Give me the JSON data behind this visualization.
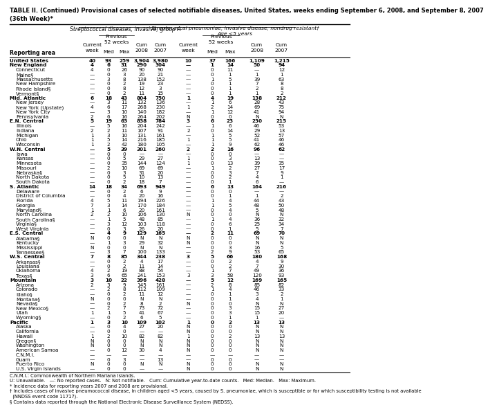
{
  "title": "TABLE II. (Continued) Provisional cases of selected notifiable diseases, United States, weeks ending September 6, 2008, and September 8, 2007\n(36th Week)*",
  "rows": [
    [
      "United States",
      "40",
      "93",
      "259",
      "3,904",
      "3,980",
      "10",
      "37",
      "166",
      "1,109",
      "1,215"
    ],
    [
      "New England",
      "4",
      "6",
      "31",
      "290",
      "304",
      "—",
      "1",
      "14",
      "50",
      "94"
    ],
    [
      "Connecticut",
      "4",
      "0",
      "26",
      "90",
      "90",
      "—",
      "0",
      "11",
      "—",
      "12"
    ],
    [
      "Maine§",
      "—",
      "0",
      "3",
      "20",
      "21",
      "—",
      "0",
      "1",
      "1",
      "1"
    ],
    [
      "Massachusetts",
      "—",
      "3",
      "8",
      "138",
      "152",
      "—",
      "1",
      "5",
      "39",
      "63"
    ],
    [
      "New Hampshire",
      "—",
      "0",
      "2",
      "19",
      "23",
      "—",
      "0",
      "1",
      "7",
      "8"
    ],
    [
      "Rhode Island§",
      "—",
      "0",
      "8",
      "12",
      "3",
      "—",
      "0",
      "1",
      "2",
      "8"
    ],
    [
      "Vermont§",
      "—",
      "0",
      "2",
      "11",
      "15",
      "—",
      "0",
      "1",
      "1",
      "2"
    ],
    [
      "Mid. Atlantic",
      "6",
      "18",
      "43",
      "804",
      "750",
      "1",
      "4",
      "19",
      "138",
      "212"
    ],
    [
      "New Jersey",
      "—",
      "3",
      "11",
      "132",
      "136",
      "—",
      "1",
      "6",
      "28",
      "43"
    ],
    [
      "New York (Upstate)",
      "4",
      "6",
      "17",
      "268",
      "230",
      "1",
      "2",
      "14",
      "69",
      "75"
    ],
    [
      "New York City",
      "—",
      "3",
      "10",
      "140",
      "182",
      "—",
      "1",
      "12",
      "41",
      "94"
    ],
    [
      "Pennsylvania",
      "2",
      "6",
      "16",
      "264",
      "202",
      "N",
      "0",
      "0",
      "N",
      "N"
    ],
    [
      "E.N. Central",
      "5",
      "19",
      "63",
      "838",
      "784",
      "3",
      "6",
      "23",
      "230",
      "215"
    ],
    [
      "Illinois",
      "—",
      "5",
      "16",
      "204",
      "242",
      "—",
      "1",
      "6",
      "46",
      "53"
    ],
    [
      "Indiana",
      "2",
      "2",
      "11",
      "107",
      "91",
      "2",
      "0",
      "14",
      "29",
      "13"
    ],
    [
      "Michigan",
      "1",
      "3",
      "10",
      "131",
      "161",
      "—",
      "1",
      "5",
      "52",
      "57"
    ],
    [
      "Ohio",
      "1",
      "5",
      "14",
      "216",
      "185",
      "1",
      "1",
      "5",
      "41",
      "46"
    ],
    [
      "Wisconsin",
      "1",
      "2",
      "42",
      "180",
      "105",
      "—",
      "1",
      "9",
      "62",
      "46"
    ],
    [
      "W.N. Central",
      "—",
      "5",
      "39",
      "301",
      "260",
      "2",
      "2",
      "16",
      "96",
      "62"
    ],
    [
      "Iowa",
      "—",
      "0",
      "0",
      "—",
      "—",
      "—",
      "0",
      "0",
      "—",
      "—"
    ],
    [
      "Kansas",
      "—",
      "0",
      "5",
      "29",
      "27",
      "1",
      "0",
      "3",
      "13",
      "—"
    ],
    [
      "Minnesota",
      "—",
      "0",
      "35",
      "144",
      "124",
      "1",
      "0",
      "13",
      "39",
      "35"
    ],
    [
      "Missouri",
      "—",
      "2",
      "10",
      "69",
      "69",
      "—",
      "1",
      "2",
      "27",
      "17"
    ],
    [
      "Nebraska§",
      "—",
      "0",
      "3",
      "31",
      "20",
      "—",
      "0",
      "3",
      "7",
      "9"
    ],
    [
      "North Dakota",
      "—",
      "0",
      "5",
      "10",
      "13",
      "—",
      "0",
      "2",
      "4",
      "1"
    ],
    [
      "South Dakota",
      "—",
      "0",
      "2",
      "18",
      "7",
      "—",
      "0",
      "1",
      "6",
      "—"
    ],
    [
      "S. Atlantic",
      "14",
      "18",
      "34",
      "693",
      "949",
      "—",
      "6",
      "13",
      "164",
      "216"
    ],
    [
      "Delaware",
      "—",
      "0",
      "2",
      "6",
      "9",
      "—",
      "0",
      "0",
      "—",
      "—"
    ],
    [
      "District of Columbia",
      "—",
      "0",
      "4",
      "20",
      "16",
      "—",
      "0",
      "1",
      "1",
      "2"
    ],
    [
      "Florida",
      "4",
      "5",
      "11",
      "194",
      "226",
      "—",
      "1",
      "4",
      "44",
      "43"
    ],
    [
      "Georgia",
      "7",
      "3",
      "14",
      "170",
      "184",
      "—",
      "1",
      "5",
      "48",
      "50"
    ],
    [
      "Maryland§",
      "1",
      "1",
      "6",
      "20",
      "161",
      "—",
      "0",
      "4",
      "5",
      "48"
    ],
    [
      "North Carolina",
      "2",
      "2",
      "10",
      "106",
      "130",
      "N",
      "0",
      "0",
      "N",
      "N"
    ],
    [
      "South Carolina§",
      "—",
      "1",
      "5",
      "48",
      "85",
      "—",
      "1",
      "4",
      "36",
      "32"
    ],
    [
      "Virginia§",
      "—",
      "3",
      "12",
      "103",
      "118",
      "—",
      "0",
      "6",
      "25",
      "34"
    ],
    [
      "West Virginia",
      "—",
      "0",
      "3",
      "26",
      "20",
      "—",
      "0",
      "1",
      "5",
      "7"
    ],
    [
      "E.S. Central",
      "—",
      "4",
      "9",
      "129",
      "165",
      "—",
      "2",
      "11",
      "69",
      "70"
    ],
    [
      "Alabama§",
      "N",
      "0",
      "0",
      "N",
      "N",
      "N",
      "0",
      "0",
      "N",
      "N"
    ],
    [
      "Kentucky",
      "—",
      "1",
      "3",
      "29",
      "32",
      "N",
      "0",
      "0",
      "N",
      "N"
    ],
    [
      "Mississippi",
      "N",
      "0",
      "0",
      "N",
      "N",
      "—",
      "0",
      "3",
      "16",
      "5"
    ],
    [
      "Tennessee§",
      "—",
      "3",
      "7",
      "100",
      "133",
      "—",
      "2",
      "9",
      "53",
      "65"
    ],
    [
      "W.S. Central",
      "7",
      "8",
      "85",
      "344",
      "238",
      "3",
      "5",
      "66",
      "180",
      "168"
    ],
    [
      "Arkansas§",
      "—",
      "0",
      "2",
      "4",
      "17",
      "—",
      "0",
      "2",
      "4",
      "9"
    ],
    [
      "Louisiana",
      "—",
      "0",
      "2",
      "11",
      "14",
      "—",
      "0",
      "2",
      "7",
      "30"
    ],
    [
      "Oklahoma",
      "4",
      "2",
      "19",
      "88",
      "54",
      "—",
      "1",
      "7",
      "49",
      "36"
    ],
    [
      "Texas§",
      "3",
      "6",
      "65",
      "241",
      "153",
      "3",
      "3",
      "58",
      "120",
      "93"
    ],
    [
      "Mountain",
      "3",
      "10",
      "22",
      "396",
      "428",
      "—",
      "5",
      "12",
      "169",
      "165"
    ],
    [
      "Arizona",
      "2",
      "3",
      "9",
      "145",
      "161",
      "—",
      "2",
      "8",
      "85",
      "82"
    ],
    [
      "Colorado",
      "—",
      "2",
      "8",
      "112",
      "109",
      "—",
      "1",
      "4",
      "46",
      "33"
    ],
    [
      "Idaho§",
      "—",
      "0",
      "2",
      "11",
      "12",
      "—",
      "0",
      "1",
      "3",
      "2"
    ],
    [
      "Montana§",
      "N",
      "0",
      "0",
      "N",
      "N",
      "—",
      "0",
      "1",
      "4",
      "1"
    ],
    [
      "Nevada§",
      "—",
      "0",
      "2",
      "8",
      "2",
      "N",
      "0",
      "0",
      "N",
      "N"
    ],
    [
      "New Mexico§",
      "—",
      "2",
      "7",
      "73",
      "72",
      "—",
      "0",
      "3",
      "15",
      "27"
    ],
    [
      "Utah",
      "1",
      "1",
      "5",
      "41",
      "67",
      "—",
      "0",
      "3",
      "15",
      "20"
    ],
    [
      "Wyoming§",
      "—",
      "0",
      "2",
      "6",
      "5",
      "—",
      "0",
      "1",
      "1",
      "—"
    ],
    [
      "Pacific",
      "1",
      "3",
      "10",
      "109",
      "102",
      "1",
      "0",
      "2",
      "13",
      "13"
    ],
    [
      "Alaska",
      "—",
      "0",
      "4",
      "27",
      "20",
      "N",
      "0",
      "0",
      "N",
      "N"
    ],
    [
      "California",
      "—",
      "0",
      "0",
      "—",
      "—",
      "N",
      "0",
      "0",
      "N",
      "N"
    ],
    [
      "Hawaii",
      "1",
      "2",
      "10",
      "82",
      "82",
      "1",
      "0",
      "2",
      "13",
      "13"
    ],
    [
      "Oregon§",
      "N",
      "0",
      "0",
      "N",
      "N",
      "N",
      "0",
      "0",
      "N",
      "N"
    ],
    [
      "Washington",
      "N",
      "0",
      "0",
      "N",
      "N",
      "N",
      "0",
      "0",
      "N",
      "N"
    ],
    [
      "American Samoa",
      "—",
      "0",
      "12",
      "30",
      "4",
      "N",
      "0",
      "0",
      "N",
      "N"
    ],
    [
      "C.N.M.I.",
      "—",
      "—",
      "—",
      "—",
      "—",
      "—",
      "—",
      "—",
      "—",
      "—"
    ],
    [
      "Guam",
      "—",
      "0",
      "3",
      "—",
      "13",
      "—",
      "0",
      "0",
      "—",
      "—"
    ],
    [
      "Puerto Rico",
      "N",
      "0",
      "0",
      "N",
      "N",
      "N",
      "0",
      "0",
      "N",
      "N"
    ],
    [
      "U.S. Virgin Islands",
      "—",
      "0",
      "0",
      "—",
      "—",
      "N",
      "0",
      "0",
      "N",
      "N"
    ]
  ],
  "bold_rows": [
    0,
    1,
    8,
    13,
    19,
    27,
    37,
    42,
    47,
    56
  ],
  "footnotes": [
    "C.N.M.I.: Commonwealth of Northern Mariana Islands.",
    "U: Unavailable.   —: No reported cases.   N: Not notifiable.   Cum: Cumulative year-to-date counts.   Med: Median.   Max: Maximum.",
    "* Incidence data for reporting years 2007 and 2008 are provisional.",
    "† Includes cases of invasive pneumococcal disease, in children aged <5 years, caused by S. pneumoniae, which is susceptible or for which susceptibility testing is not available",
    "  (NNDSS event code 11717).",
    "§ Contains data reported through the National Electronic Disease Surveillance System (NEDSS)."
  ],
  "ga_label": "Streptococcal diseases, invasive, group A",
  "sp_label": "Streptococcal pneumoniae, invasive disease, nondrug resistant†",
  "sp_label2": "Age <5 years",
  "prev52_label": "Previous\n52 weeks",
  "reporting_area_label": "Reporting area",
  "current_week_label": "Current\nweek",
  "med_label": "Med",
  "max_label": "Max",
  "cum2008_label": "Cum\n2008",
  "cum2007_label": "Cum\n2007"
}
